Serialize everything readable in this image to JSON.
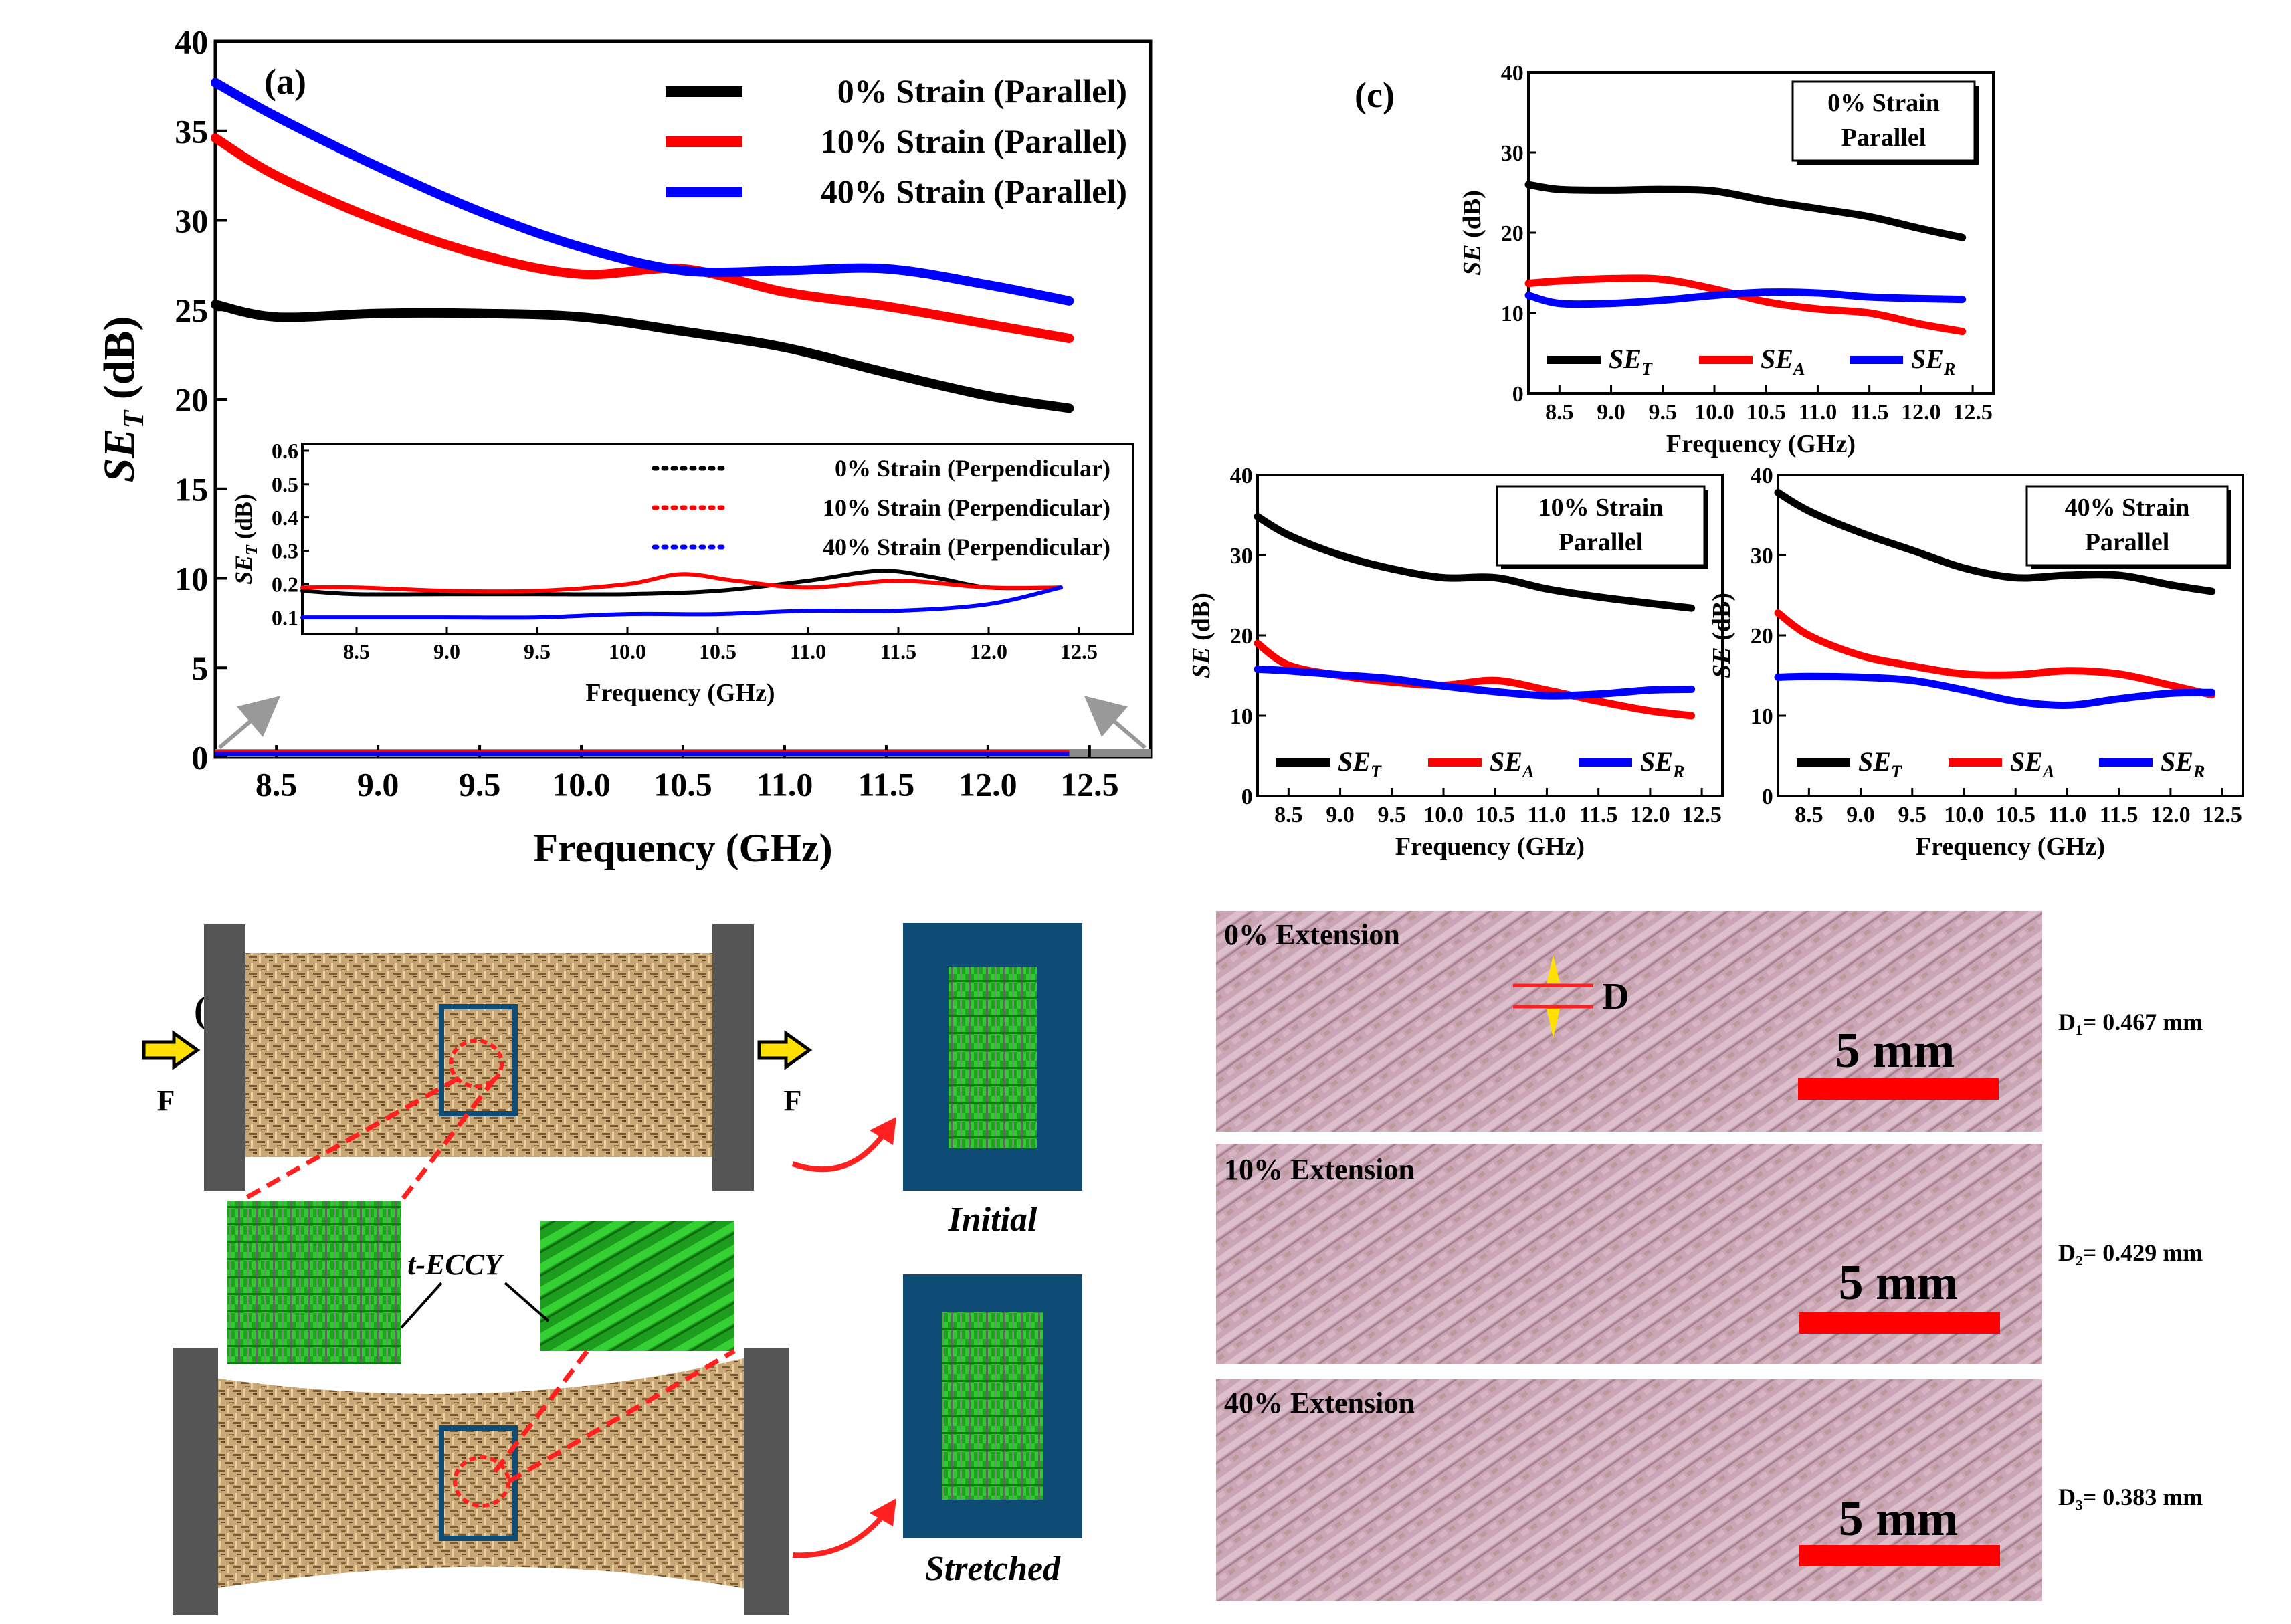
{
  "chart_data": [
    {
      "id": "a",
      "type": "line",
      "panel_label": "(a)",
      "xlabel": "Frequency (GHz)",
      "ylabel": "SE_T (dB)",
      "xlim": [
        8.2,
        12.8
      ],
      "ylim": [
        0,
        40
      ],
      "xticks": [
        "8.5",
        "9.0",
        "9.5",
        "10.0",
        "10.5",
        "11.0",
        "11.5",
        "12.0",
        "12.5"
      ],
      "yticks": [
        "0",
        "5",
        "10",
        "15",
        "20",
        "25",
        "30",
        "35",
        "40"
      ],
      "legend_position": "top-right",
      "series": [
        {
          "name": "0% Strain (Parallel)",
          "color": "#000000",
          "x": [
            8.2,
            8.5,
            9.0,
            9.5,
            10.0,
            10.5,
            11.0,
            11.5,
            12.0,
            12.4
          ],
          "y": [
            25.3,
            24.6,
            24.8,
            24.8,
            24.6,
            23.8,
            22.9,
            21.5,
            20.2,
            19.5
          ]
        },
        {
          "name": "10% Strain (Parallel)",
          "color": "#ff0000",
          "x": [
            8.2,
            8.5,
            9.0,
            9.5,
            10.0,
            10.5,
            11.0,
            11.5,
            12.0,
            12.4
          ],
          "y": [
            34.6,
            32.5,
            30.0,
            28.1,
            27.0,
            27.3,
            26.0,
            25.2,
            24.2,
            23.4
          ]
        },
        {
          "name": "40% Strain (Parallel)",
          "color": "#0000ff",
          "x": [
            8.2,
            8.5,
            9.0,
            9.5,
            10.0,
            10.5,
            11.0,
            11.5,
            12.0,
            12.4
          ],
          "y": [
            37.7,
            35.8,
            33.0,
            30.5,
            28.5,
            27.2,
            27.2,
            27.3,
            26.4,
            25.5
          ]
        },
        {
          "name": "0% Strain (Perpendicular)",
          "color": "#000000",
          "dashed": true,
          "x": [
            8.2,
            12.4
          ],
          "y": [
            0.2,
            0.2
          ]
        },
        {
          "name": "10% Strain (Perpendicular)",
          "color": "#ff0000",
          "dashed": true,
          "x": [
            8.2,
            12.4
          ],
          "y": [
            0.2,
            0.2
          ]
        },
        {
          "name": "40% Strain (Perpendicular)",
          "color": "#0000ff",
          "dashed": true,
          "x": [
            8.2,
            12.4
          ],
          "y": [
            0.1,
            0.1
          ]
        }
      ],
      "inset": {
        "xlabel": "Frequency (GHz)",
        "ylabel": "SE_T (dB)",
        "xlim": [
          8.2,
          12.8
        ],
        "ylim": [
          0.05,
          0.62
        ],
        "xticks": [
          "8.5",
          "9.0",
          "9.5",
          "10.0",
          "10.5",
          "11.0",
          "11.5",
          "12.0",
          "12.5"
        ],
        "yticks": [
          "0.1",
          "0.2",
          "0.3",
          "0.4",
          "0.5",
          "0.6"
        ],
        "legend_position": "top-right",
        "series": [
          {
            "name": "0% Strain (Perpendicular)",
            "color": "#000000",
            "x": [
              8.2,
              8.5,
              9.0,
              9.5,
              10.0,
              10.5,
              11.0,
              11.4,
              11.7,
              12.0,
              12.4
            ],
            "y": [
              0.18,
              0.17,
              0.17,
              0.17,
              0.17,
              0.18,
              0.21,
              0.24,
              0.22,
              0.19,
              0.19
            ]
          },
          {
            "name": "10% Strain (Perpendicular)",
            "color": "#ff0000",
            "x": [
              8.2,
              8.5,
              9.0,
              9.5,
              10.0,
              10.3,
              10.6,
              11.0,
              11.5,
              12.0,
              12.4
            ],
            "y": [
              0.19,
              0.19,
              0.18,
              0.18,
              0.2,
              0.23,
              0.21,
              0.19,
              0.21,
              0.19,
              0.19
            ]
          },
          {
            "name": "40% Strain (Perpendicular)",
            "color": "#0000ff",
            "x": [
              8.2,
              8.5,
              9.0,
              9.5,
              10.0,
              10.5,
              11.0,
              11.5,
              12.0,
              12.4
            ],
            "y": [
              0.1,
              0.1,
              0.1,
              0.1,
              0.11,
              0.11,
              0.12,
              0.12,
              0.14,
              0.19
            ]
          }
        ]
      }
    },
    {
      "id": "c1",
      "type": "line",
      "panel_label": "(c)",
      "annotation": [
        "0% Strain",
        "Parallel"
      ],
      "xlabel": "Frequency (GHz)",
      "ylabel": "SE (dB)",
      "xlim": [
        8.2,
        12.7
      ],
      "ylim": [
        0,
        40
      ],
      "xticks": [
        "8.5",
        "9.0",
        "9.5",
        "10.0",
        "10.5",
        "11.0",
        "11.5",
        "12.0",
        "12.5"
      ],
      "yticks": [
        "0",
        "10",
        "20",
        "30",
        "40"
      ],
      "legend_position": "bottom",
      "series": [
        {
          "name": "SE_T",
          "color": "#000000",
          "x": [
            8.2,
            8.5,
            9.0,
            9.5,
            10.0,
            10.5,
            11.0,
            11.5,
            12.0,
            12.4
          ],
          "y": [
            26.0,
            25.4,
            25.3,
            25.4,
            25.2,
            24.0,
            23.0,
            22.0,
            20.5,
            19.4
          ]
        },
        {
          "name": "SE_A",
          "color": "#ff0000",
          "x": [
            8.2,
            8.5,
            9.0,
            9.5,
            10.0,
            10.5,
            11.0,
            11.5,
            12.0,
            12.4
          ],
          "y": [
            13.7,
            14.0,
            14.3,
            14.2,
            13.0,
            11.4,
            10.5,
            10.0,
            8.6,
            7.7
          ]
        },
        {
          "name": "SE_R",
          "color": "#0000ff",
          "x": [
            8.2,
            8.5,
            9.0,
            9.5,
            10.0,
            10.5,
            11.0,
            11.5,
            12.0,
            12.4
          ],
          "y": [
            12.2,
            11.2,
            11.2,
            11.6,
            12.2,
            12.6,
            12.5,
            12.0,
            11.8,
            11.7
          ]
        }
      ]
    },
    {
      "id": "c2",
      "type": "line",
      "annotation": [
        "10% Strain",
        "Parallel"
      ],
      "xlabel": "Frequency (GHz)",
      "ylabel": "SE (dB)",
      "xlim": [
        8.2,
        12.7
      ],
      "ylim": [
        0,
        40
      ],
      "xticks": [
        "8.5",
        "9.0",
        "9.5",
        "10.0",
        "10.5",
        "11.0",
        "11.5",
        "12.0",
        "12.5"
      ],
      "yticks": [
        "0",
        "10",
        "20",
        "30",
        "40"
      ],
      "legend_position": "bottom",
      "series": [
        {
          "name": "SE_T",
          "color": "#000000",
          "x": [
            8.2,
            8.5,
            9.0,
            9.5,
            10.0,
            10.5,
            11.0,
            11.5,
            12.0,
            12.4
          ],
          "y": [
            34.8,
            32.5,
            30.0,
            28.3,
            27.2,
            27.2,
            25.8,
            24.8,
            24.0,
            23.4
          ]
        },
        {
          "name": "SE_A",
          "color": "#ff0000",
          "x": [
            8.2,
            8.5,
            9.0,
            9.5,
            10.0,
            10.5,
            11.0,
            11.5,
            12.0,
            12.4
          ],
          "y": [
            19.0,
            16.3,
            15.0,
            14.2,
            13.8,
            14.4,
            13.2,
            11.8,
            10.6,
            10.0
          ]
        },
        {
          "name": "SE_R",
          "color": "#0000ff",
          "x": [
            8.2,
            8.5,
            9.0,
            9.5,
            10.0,
            10.5,
            11.0,
            11.5,
            12.0,
            12.4
          ],
          "y": [
            15.8,
            15.6,
            15.1,
            14.6,
            13.7,
            13.0,
            12.5,
            12.7,
            13.2,
            13.3
          ]
        }
      ]
    },
    {
      "id": "c3",
      "type": "line",
      "annotation": [
        "40% Strain",
        "Parallel"
      ],
      "xlabel": "Frequency (GHz)",
      "ylabel": "SE (dB)",
      "xlim": [
        8.2,
        12.7
      ],
      "ylim": [
        0,
        40
      ],
      "xticks": [
        "8.5",
        "9.0",
        "9.5",
        "10.0",
        "10.5",
        "11.0",
        "11.5",
        "12.0",
        "12.5"
      ],
      "yticks": [
        "0",
        "10",
        "20",
        "30",
        "40"
      ],
      "legend_position": "bottom",
      "series": [
        {
          "name": "SE_T",
          "color": "#000000",
          "x": [
            8.2,
            8.5,
            9.0,
            9.5,
            10.0,
            10.5,
            11.0,
            11.5,
            12.0,
            12.4
          ],
          "y": [
            37.8,
            35.5,
            32.8,
            30.6,
            28.4,
            27.2,
            27.5,
            27.5,
            26.3,
            25.5
          ]
        },
        {
          "name": "SE_A",
          "color": "#ff0000",
          "x": [
            8.2,
            8.5,
            9.0,
            9.5,
            10.0,
            10.5,
            11.0,
            11.5,
            12.0,
            12.4
          ],
          "y": [
            22.8,
            20.0,
            17.5,
            16.2,
            15.2,
            15.1,
            15.6,
            15.2,
            13.8,
            12.6
          ]
        },
        {
          "name": "SE_R",
          "color": "#0000ff",
          "x": [
            8.2,
            8.5,
            9.0,
            9.5,
            10.0,
            10.5,
            11.0,
            11.5,
            12.0,
            12.4
          ],
          "y": [
            14.8,
            14.9,
            14.8,
            14.4,
            13.2,
            11.8,
            11.3,
            12.1,
            12.8,
            12.9
          ]
        }
      ]
    }
  ],
  "panel_b": {
    "label": "(b)",
    "force_label": "F",
    "yarn_label": "t-ECCY",
    "initial_label": "Initial",
    "stretched_label": "Stretched"
  },
  "photos": [
    {
      "title": "0% Extension",
      "scale": "5 mm",
      "measure": "D₁= 0.467 mm",
      "marker": "D"
    },
    {
      "title": "10% Extension",
      "scale": "5 mm",
      "measure": "D₂= 0.429 mm"
    },
    {
      "title": "40% Extension",
      "scale": "5 mm",
      "measure": "D₃= 0.383 mm"
    }
  ]
}
